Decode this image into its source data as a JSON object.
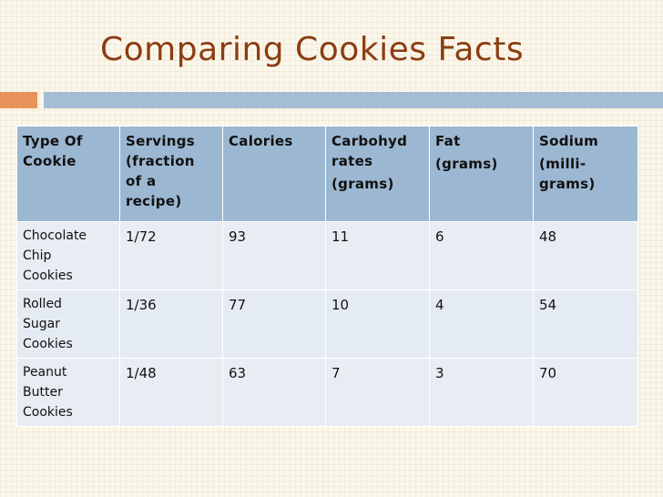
{
  "slide": {
    "title": "Comparing Cookies Facts"
  },
  "table": {
    "headers": [
      {
        "lines": [
          "Type Of",
          "Cookie"
        ]
      },
      {
        "lines": [
          "Servings",
          "(fraction",
          "of a",
          "recipe)"
        ]
      },
      {
        "lines": [
          "Calories"
        ]
      },
      {
        "lines": [
          "Carbohyd",
          "rates",
          "(grams)"
        ]
      },
      {
        "lines": [
          "Fat",
          "(grams)"
        ]
      },
      {
        "lines": [
          "Sodium",
          "(milli-",
          "grams)"
        ]
      }
    ],
    "rows": [
      {
        "type": [
          "Chocolate",
          "Chip",
          "Cookies"
        ],
        "servings": "1/72",
        "calories": "93",
        "carbs": "11",
        "fat": "6",
        "sodium": "48"
      },
      {
        "type": [
          "Rolled",
          "Sugar",
          "Cookies"
        ],
        "servings": "1/36",
        "calories": "77",
        "carbs": "10",
        "fat": "4",
        "sodium": "54"
      },
      {
        "type": [
          "Peanut",
          "Butter",
          "Cookies"
        ],
        "servings": "1/48",
        "calories": "63",
        "carbs": "7",
        "fat": "3",
        "sodium": "70"
      }
    ]
  },
  "colors": {
    "title": "#8b3d12",
    "accent_orange": "#e7935a",
    "accent_blue": "#a4bdd3",
    "header_fill": "#9cb7d1",
    "row_fill": "#e8edf4"
  }
}
